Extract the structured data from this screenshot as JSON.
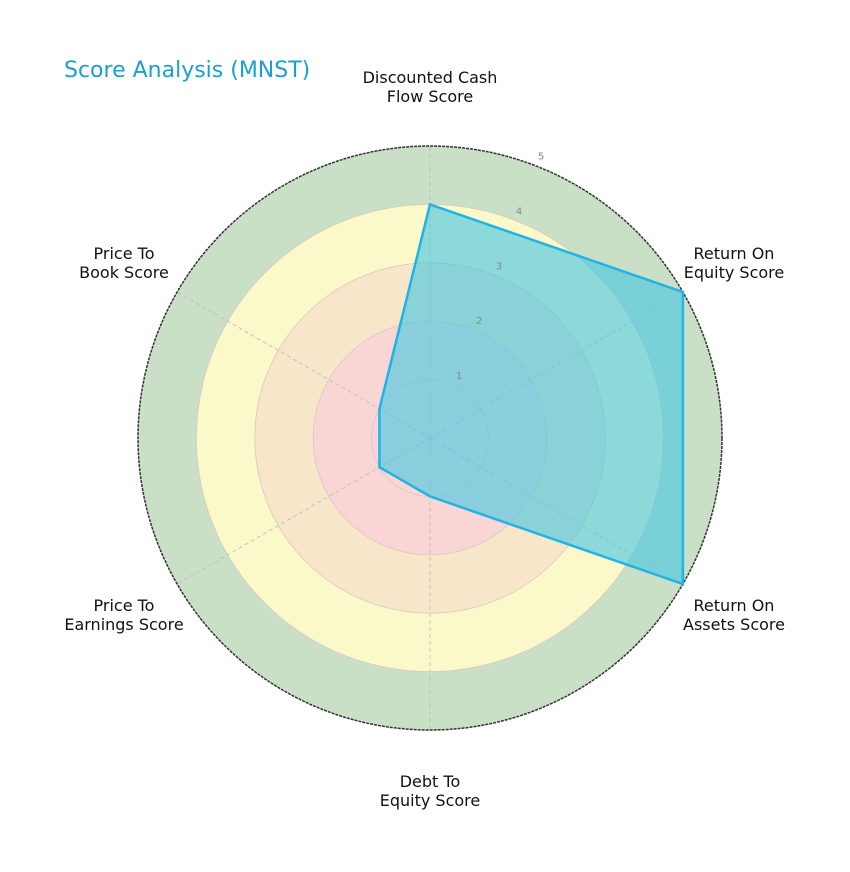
{
  "chart_data": {
    "type": "radar",
    "title": "Score Analysis (MNST)",
    "categories": [
      "Discounted Cash Flow Score",
      "Return On Equity Score",
      "Return On Assets Score",
      "Debt To Equity Score",
      "Price To Earnings Score",
      "Price To Book Score"
    ],
    "series": [
      {
        "name": "MNST",
        "values": [
          4,
          5,
          5,
          1,
          1,
          1
        ]
      }
    ],
    "rlim": [
      0,
      5
    ],
    "rticks": [
      1,
      2,
      3,
      4,
      5
    ],
    "bands": [
      {
        "from": 0,
        "to": 2,
        "color": "#f9d6d5"
      },
      {
        "from": 2,
        "to": 3,
        "color": "#f7e6c9"
      },
      {
        "from": 3,
        "to": 4,
        "color": "#fbf8c9"
      },
      {
        "from": 4,
        "to": 5,
        "color": "#c9e0c7"
      }
    ],
    "fill_color": "#4fc8e0",
    "line_color": "#1fb3e8"
  },
  "labels": {
    "dcf": "Discounted Cash\nFlow Score",
    "roe": "Return On\nEquity Score",
    "roa": "Return On\nAssets Score",
    "de": "Debt To\nEquity Score",
    "pe": "Price To\nEarnings Score",
    "pb": "Price To\nBook Score"
  },
  "ticks": [
    "1",
    "2",
    "3",
    "4",
    "5"
  ]
}
